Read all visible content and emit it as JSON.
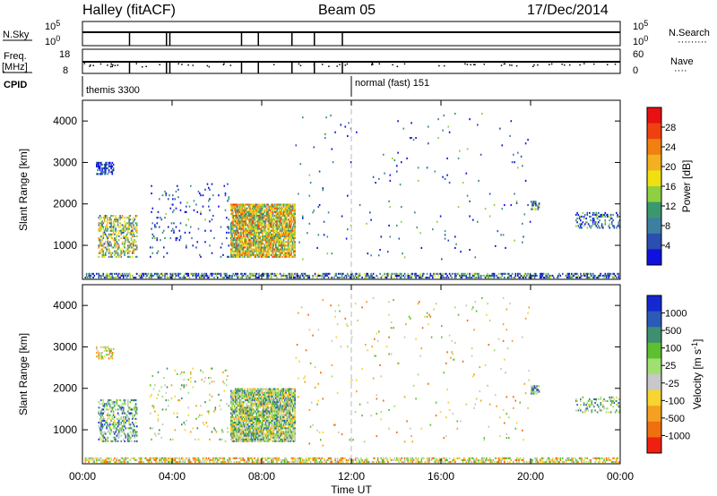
{
  "header": {
    "station": "Halley (fitACF)",
    "beam": "Beam 05",
    "date": "17/Dec/2014"
  },
  "top_panel_labels": {
    "nsky": "N.Sky",
    "nsearch": "N.Search",
    "freq_line1": "Freq.",
    "freq_line2": "[MHz]",
    "nave": "Nave",
    "cpid": "CPID",
    "nsky_ticks": [
      "10^5",
      "10^0"
    ],
    "nsearch_ticks": [
      "10^5",
      "10^0"
    ],
    "freq_ticks": [
      "18",
      "8"
    ],
    "nave_ticks": [
      "60",
      "0"
    ],
    "nsearch_dots": "·········",
    "nave_dots": "····"
  },
  "cpid_modes": [
    {
      "label": "themis 3300",
      "start_hour": 0
    },
    {
      "label": "normal (fast) 151",
      "start_hour": 12
    }
  ],
  "time_axis": {
    "label": "Time UT",
    "ticks": [
      "00:00",
      "04:00",
      "08:00",
      "12:00",
      "16:00",
      "20:00",
      "00:00"
    ]
  },
  "colors": {
    "power_scale": [
      "#1010e0",
      "#2a4fb0",
      "#3c7fa0",
      "#3a9870",
      "#8fd040",
      "#f0e010",
      "#f3b020",
      "#f08010",
      "#f04010",
      "#e81010"
    ],
    "velocity_scale": [
      "#1428d0",
      "#2c5ab8",
      "#3c9070",
      "#5cc030",
      "#a0e070",
      "#c8c8c8",
      "#f7d430",
      "#f5a020",
      "#f07010",
      "#f02010"
    ],
    "ground_scatter": "#a8a8a8"
  },
  "chart_data": [
    {
      "type": "heatmap",
      "name": "power-panel",
      "title": "",
      "xlabel": "Time UT",
      "ylabel": "Slant Range [km]",
      "xlim": [
        0,
        24
      ],
      "ylim": [
        180,
        4500
      ],
      "yticks": [
        1000,
        2000,
        3000,
        4000
      ],
      "colorbar": {
        "label": "Power [dB]",
        "range": [
          0,
          32
        ],
        "ticks": [
          "4",
          "8",
          "12",
          "16",
          "20",
          "24",
          "28"
        ]
      },
      "regions": [
        {
          "t": [
            6.6,
            9.5
          ],
          "r": [
            700,
            2000
          ],
          "level": 0.55,
          "density": 0.85
        },
        {
          "t": [
            0.7,
            2.4
          ],
          "r": [
            700,
            1700
          ],
          "level": 0.45,
          "density": 0.45
        },
        {
          "t": [
            0.6,
            1.4
          ],
          "r": [
            2700,
            3000
          ],
          "level": 0.05,
          "density": 0.6
        },
        {
          "t": [
            0.1,
            24.0
          ],
          "r": [
            200,
            320
          ],
          "level": 0.25,
          "density": 0.55
        },
        {
          "t": [
            20.0,
            20.4
          ],
          "r": [
            1850,
            2050
          ],
          "level": 0.3,
          "density": 0.6
        },
        {
          "t": [
            22.0,
            24.0
          ],
          "r": [
            1400,
            1800
          ],
          "level": 0.2,
          "density": 0.3
        },
        {
          "t": [
            3.0,
            6.5
          ],
          "r": [
            700,
            2500
          ],
          "level": 0.15,
          "density": 0.05
        },
        {
          "t": [
            9.5,
            20.0
          ],
          "r": [
            600,
            4200
          ],
          "level": 0.2,
          "density": 0.012
        }
      ]
    },
    {
      "type": "heatmap",
      "name": "velocity-panel",
      "title": "",
      "xlabel": "Time UT",
      "ylabel": "Slant Range [km]",
      "xlim": [
        0,
        24
      ],
      "ylim": [
        180,
        4500
      ],
      "yticks": [
        1000,
        2000,
        3000,
        4000
      ],
      "colorbar": {
        "label": "Velocity [m s^-1]",
        "range": [
          -1200,
          1200
        ],
        "ticks": [
          "1000",
          "500",
          "100",
          "25",
          "-25",
          "-100",
          "-500",
          "-1000"
        ]
      },
      "regions": [
        {
          "t": [
            6.6,
            9.5
          ],
          "r": [
            700,
            2000
          ],
          "level": 0.45,
          "density": 0.85
        },
        {
          "t": [
            0.7,
            2.4
          ],
          "r": [
            700,
            1700
          ],
          "level": 0.35,
          "density": 0.45
        },
        {
          "t": [
            0.6,
            1.4
          ],
          "r": [
            2700,
            3000
          ],
          "level": 0.6,
          "density": 0.5
        },
        {
          "t": [
            0.1,
            24.0
          ],
          "r": [
            200,
            320
          ],
          "level": 0.6,
          "density": 0.55
        },
        {
          "t": [
            20.0,
            20.4
          ],
          "r": [
            1850,
            2050
          ],
          "level": 0.35,
          "density": 0.6
        },
        {
          "t": [
            22.0,
            24.0
          ],
          "r": [
            1400,
            1800
          ],
          "level": 0.4,
          "density": 0.3
        },
        {
          "t": [
            3.0,
            6.5
          ],
          "r": [
            700,
            2500
          ],
          "level": 0.5,
          "density": 0.05
        },
        {
          "t": [
            9.5,
            20.0
          ],
          "r": [
            600,
            4200
          ],
          "level": 0.6,
          "density": 0.012
        }
      ]
    }
  ]
}
